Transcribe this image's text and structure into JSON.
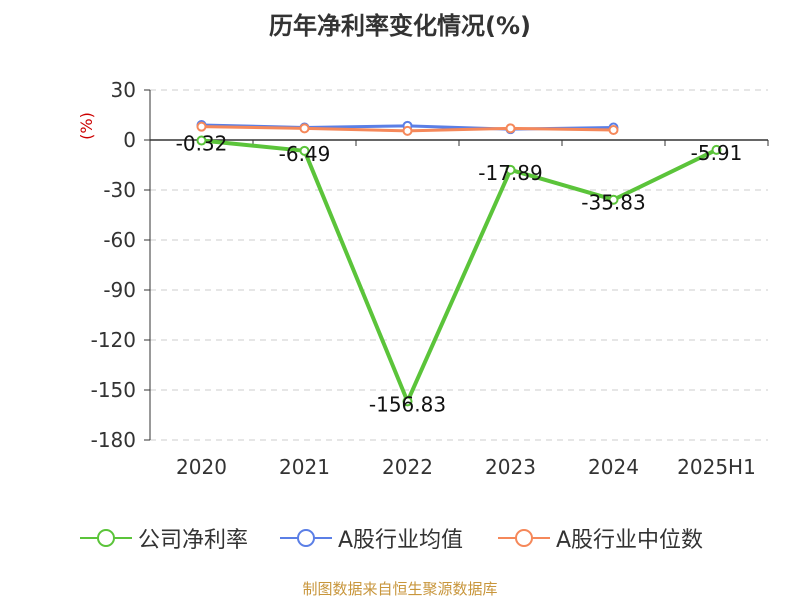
{
  "chart_data": {
    "type": "line",
    "title": "历年净利率变化情况(%)",
    "ylabel": "(%)",
    "categories": [
      "2020",
      "2021",
      "2022",
      "2023",
      "2024",
      "2025H1"
    ],
    "ylim": [
      -180,
      30
    ],
    "yticks": [
      30,
      0,
      -30,
      -60,
      -90,
      -120,
      -150,
      -180
    ],
    "grid": true,
    "legend_position": "bottom",
    "series": [
      {
        "name": "公司净利率",
        "color": "#5bc43a",
        "values": [
          -0.32,
          -6.49,
          -156.83,
          -17.89,
          -35.83,
          -5.91
        ],
        "labels": [
          "-0.32",
          "-6.49",
          "-156.83",
          "-17.89",
          "-35.83",
          "-5.91"
        ]
      },
      {
        "name": "A股行业均值",
        "color": "#5b7fe6",
        "values": [
          9.0,
          7.5,
          8.5,
          6.5,
          7.5,
          null
        ]
      },
      {
        "name": "A股行业中位数",
        "color": "#f5885a",
        "values": [
          8.0,
          7.0,
          5.5,
          7.0,
          6.0,
          null
        ]
      }
    ]
  },
  "footer": "制图数据来自恒生聚源数据库"
}
